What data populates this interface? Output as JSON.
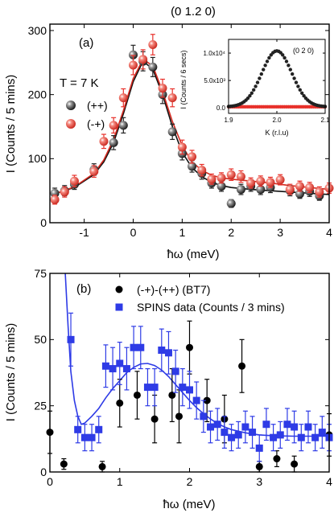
{
  "figure_title": "(0 1.2 0)",
  "chart_data": [
    {
      "panel_label": "(a)",
      "type": "scatter",
      "annotation": "T = 7 K",
      "xlabel": "ħω (meV)",
      "ylabel": "I (Counts / 5 mins)",
      "xlim": [
        -1.7,
        4.0
      ],
      "ylim": [
        0,
        310
      ],
      "x_ticks": [
        -1,
        0,
        1,
        2,
        3,
        4
      ],
      "y_ticks": [
        0,
        100,
        200,
        300
      ],
      "legend_position": "top-left",
      "series": [
        {
          "name": "(++)",
          "color": "#222222",
          "marker": "sphere",
          "points": [
            {
              "x": -1.6,
              "y": 46,
              "err": 8
            },
            {
              "x": -1.4,
              "y": 50,
              "err": 8
            },
            {
              "x": -1.2,
              "y": 60,
              "err": 8
            },
            {
              "x": -0.8,
              "y": 83,
              "err": 9
            },
            {
              "x": -0.4,
              "y": 125,
              "err": 11
            },
            {
              "x": -0.2,
              "y": 152,
              "err": 12
            },
            {
              "x": 0.0,
              "y": 262,
              "err": 15
            },
            {
              "x": 0.2,
              "y": 252,
              "err": 15
            },
            {
              "x": 0.4,
              "y": 243,
              "err": 15
            },
            {
              "x": 0.6,
              "y": 200,
              "err": 14
            },
            {
              "x": 0.8,
              "y": 142,
              "err": 12
            },
            {
              "x": 1.0,
              "y": 108,
              "err": 10
            },
            {
              "x": 1.2,
              "y": 88,
              "err": 9
            },
            {
              "x": 1.4,
              "y": 77,
              "err": 9
            },
            {
              "x": 1.6,
              "y": 62,
              "err": 8
            },
            {
              "x": 1.8,
              "y": 57,
              "err": 8
            },
            {
              "x": 2.0,
              "y": 30,
              "err": 6
            },
            {
              "x": 2.2,
              "y": 52,
              "err": 8
            },
            {
              "x": 2.4,
              "y": 57,
              "err": 8
            },
            {
              "x": 2.6,
              "y": 52,
              "err": 8
            },
            {
              "x": 2.8,
              "y": 55,
              "err": 8
            },
            {
              "x": 3.2,
              "y": 50,
              "err": 8
            },
            {
              "x": 3.4,
              "y": 45,
              "err": 7
            },
            {
              "x": 3.6,
              "y": 49,
              "err": 8
            },
            {
              "x": 3.8,
              "y": 42,
              "err": 7
            }
          ]
        },
        {
          "name": "(-+)",
          "color": "#e8302a",
          "marker": "sphere",
          "points": [
            {
              "x": -1.6,
              "y": 36,
              "err": 7
            },
            {
              "x": -1.4,
              "y": 48,
              "err": 8
            },
            {
              "x": -1.2,
              "y": 65,
              "err": 9
            },
            {
              "x": -0.8,
              "y": 80,
              "err": 9
            },
            {
              "x": -0.6,
              "y": 127,
              "err": 11
            },
            {
              "x": -0.4,
              "y": 152,
              "err": 12
            },
            {
              "x": -0.2,
              "y": 195,
              "err": 14
            },
            {
              "x": 0.0,
              "y": 246,
              "err": 15
            },
            {
              "x": 0.2,
              "y": 255,
              "err": 15
            },
            {
              "x": 0.4,
              "y": 278,
              "err": 16
            },
            {
              "x": 0.6,
              "y": 210,
              "err": 14
            },
            {
              "x": 0.8,
              "y": 195,
              "err": 14
            },
            {
              "x": 1.0,
              "y": 118,
              "err": 11
            },
            {
              "x": 1.2,
              "y": 103,
              "err": 10
            },
            {
              "x": 1.4,
              "y": 82,
              "err": 9
            },
            {
              "x": 1.6,
              "y": 68,
              "err": 8
            },
            {
              "x": 1.8,
              "y": 70,
              "err": 8
            },
            {
              "x": 2.0,
              "y": 75,
              "err": 9
            },
            {
              "x": 2.2,
              "y": 72,
              "err": 9
            },
            {
              "x": 2.4,
              "y": 62,
              "err": 8
            },
            {
              "x": 2.6,
              "y": 65,
              "err": 8
            },
            {
              "x": 2.8,
              "y": 63,
              "err": 8
            },
            {
              "x": 3.0,
              "y": 67,
              "err": 8
            },
            {
              "x": 3.2,
              "y": 52,
              "err": 8
            },
            {
              "x": 3.4,
              "y": 57,
              "err": 8
            },
            {
              "x": 3.6,
              "y": 55,
              "err": 8
            },
            {
              "x": 3.8,
              "y": 48,
              "err": 8
            },
            {
              "x": 4.0,
              "y": 54,
              "err": 8
            }
          ]
        }
      ],
      "fit_lines": [
        {
          "color": "#111111",
          "points": [
            [
              -1.6,
              45
            ],
            [
              -1.2,
              55
            ],
            [
              -0.8,
              75
            ],
            [
              -0.6,
              95
            ],
            [
              -0.4,
              125
            ],
            [
              -0.2,
              170
            ],
            [
              0.0,
              220
            ],
            [
              0.2,
              252
            ],
            [
              0.4,
              240
            ],
            [
              0.6,
              200
            ],
            [
              0.8,
              150
            ],
            [
              1.0,
              110
            ],
            [
              1.2,
              86
            ],
            [
              1.4,
              72
            ],
            [
              1.6,
              63
            ],
            [
              1.8,
              58
            ],
            [
              2.0,
              55
            ],
            [
              2.4,
              52
            ],
            [
              2.8,
              50
            ],
            [
              3.2,
              48
            ],
            [
              3.6,
              46
            ],
            [
              4.0,
              44
            ]
          ]
        },
        {
          "color": "#d42a20",
          "points": [
            [
              -1.6,
              45
            ],
            [
              -1.2,
              56
            ],
            [
              -0.8,
              77
            ],
            [
              -0.6,
              98
            ],
            [
              -0.4,
              130
            ],
            [
              -0.2,
              175
            ],
            [
              0.0,
              225
            ],
            [
              0.2,
              255
            ],
            [
              0.4,
              245
            ],
            [
              0.6,
              205
            ],
            [
              0.8,
              158
            ],
            [
              1.0,
              120
            ],
            [
              1.2,
              95
            ],
            [
              1.4,
              82
            ],
            [
              1.6,
              74
            ],
            [
              1.8,
              70
            ],
            [
              2.0,
              68
            ],
            [
              2.4,
              65
            ],
            [
              2.8,
              62
            ],
            [
              3.2,
              58
            ],
            [
              3.6,
              55
            ],
            [
              4.0,
              52
            ]
          ]
        }
      ],
      "inset": {
        "type": "scatter",
        "annotation": "(0 2 0)",
        "xlabel": "K (r.l.u)",
        "ylabel": "I (Counts / 6 secs)",
        "xlim": [
          1.9,
          2.1
        ],
        "ylim": [
          -1000,
          12500
        ],
        "x_ticks": [
          1.9,
          2.0,
          2.1
        ],
        "x_tick_labels": [
          "1.9",
          "2.0",
          "2.1"
        ],
        "y_ticks": [
          0,
          5000,
          10000
        ],
        "y_tick_labels": [
          "0.0",
          "5.0x10³",
          "1.0x10⁴"
        ],
        "peak_center": 2.0,
        "peak_height": 10200,
        "peak_sigma": 0.031,
        "red_baseline": 200
      }
    },
    {
      "panel_label": "(b)",
      "type": "scatter",
      "xlabel": "ħω (meV)",
      "ylabel": "I (Counts / 5 mins)",
      "xlim": [
        0,
        4.0
      ],
      "ylim": [
        0,
        75
      ],
      "x_ticks": [
        0,
        1,
        2,
        3,
        4
      ],
      "y_ticks": [
        0,
        25,
        50,
        75
      ],
      "legend_position": "top-left",
      "series": [
        {
          "name": "(-+)-(++) (BT7)",
          "color": "#000000",
          "marker": "circle",
          "points": [
            {
              "x": 0.0,
              "y": 15,
              "err": 8
            },
            {
              "x": 0.2,
              "y": 3,
              "err": 2
            },
            {
              "x": 0.75,
              "y": 2,
              "err": 2
            },
            {
              "x": 1.0,
              "y": 26,
              "err": 9
            },
            {
              "x": 1.25,
              "y": 29,
              "err": 9
            },
            {
              "x": 1.5,
              "y": 20,
              "err": 9
            },
            {
              "x": 1.75,
              "y": 29,
              "err": 10
            },
            {
              "x": 1.85,
              "y": 21,
              "err": 10
            },
            {
              "x": 2.0,
              "y": 47,
              "err": 10
            },
            {
              "x": 2.25,
              "y": 27,
              "err": 8
            },
            {
              "x": 2.5,
              "y": 20,
              "err": 9
            },
            {
              "x": 2.75,
              "y": 40,
              "err": 10
            },
            {
              "x": 3.0,
              "y": 2,
              "err": 2
            },
            {
              "x": 3.25,
              "y": 5,
              "err": 3
            },
            {
              "x": 3.5,
              "y": 3,
              "err": 3
            },
            {
              "x": 4.0,
              "y": 14,
              "err": 8
            }
          ]
        },
        {
          "name": "SPINS data (Counts / 3 mins)",
          "color": "#2e3be6",
          "marker": "square",
          "points": [
            {
              "x": 0.3,
              "y": 50,
              "err": 10
            },
            {
              "x": 0.4,
              "y": 16,
              "err": 5
            },
            {
              "x": 0.5,
              "y": 13,
              "err": 5
            },
            {
              "x": 0.6,
              "y": 13,
              "err": 5
            },
            {
              "x": 0.7,
              "y": 16,
              "err": 5
            },
            {
              "x": 0.8,
              "y": 40,
              "err": 8
            },
            {
              "x": 0.9,
              "y": 39,
              "err": 8
            },
            {
              "x": 1.0,
              "y": 41,
              "err": 8
            },
            {
              "x": 1.1,
              "y": 39,
              "err": 8
            },
            {
              "x": 1.2,
              "y": 47,
              "err": 8
            },
            {
              "x": 1.3,
              "y": 47,
              "err": 8
            },
            {
              "x": 1.4,
              "y": 32,
              "err": 7
            },
            {
              "x": 1.5,
              "y": 32,
              "err": 7
            },
            {
              "x": 1.6,
              "y": 46,
              "err": 8
            },
            {
              "x": 1.7,
              "y": 45,
              "err": 8
            },
            {
              "x": 1.8,
              "y": 38,
              "err": 8
            },
            {
              "x": 1.9,
              "y": 32,
              "err": 7
            },
            {
              "x": 2.0,
              "y": 31,
              "err": 7
            },
            {
              "x": 2.1,
              "y": 27,
              "err": 7
            },
            {
              "x": 2.2,
              "y": 21,
              "err": 6
            },
            {
              "x": 2.3,
              "y": 17,
              "err": 6
            },
            {
              "x": 2.4,
              "y": 18,
              "err": 6
            },
            {
              "x": 2.5,
              "y": 15,
              "err": 6
            },
            {
              "x": 2.6,
              "y": 13,
              "err": 5
            },
            {
              "x": 2.7,
              "y": 14,
              "err": 5
            },
            {
              "x": 2.8,
              "y": 17,
              "err": 6
            },
            {
              "x": 2.9,
              "y": 15,
              "err": 6
            },
            {
              "x": 3.0,
              "y": 9,
              "err": 5
            },
            {
              "x": 3.1,
              "y": 18,
              "err": 6
            },
            {
              "x": 3.2,
              "y": 13,
              "err": 5
            },
            {
              "x": 3.3,
              "y": 14,
              "err": 5
            },
            {
              "x": 3.4,
              "y": 18,
              "err": 6
            },
            {
              "x": 3.5,
              "y": 17,
              "err": 6
            },
            {
              "x": 3.6,
              "y": 13,
              "err": 5
            },
            {
              "x": 3.7,
              "y": 17,
              "err": 6
            },
            {
              "x": 3.8,
              "y": 13,
              "err": 5
            },
            {
              "x": 3.9,
              "y": 15,
              "err": 6
            },
            {
              "x": 4.0,
              "y": 13,
              "err": 5
            }
          ]
        }
      ],
      "fit_lines": [
        {
          "color": "#2e3be6",
          "points": [
            [
              0.22,
              75
            ],
            [
              0.26,
              55
            ],
            [
              0.3,
              38
            ],
            [
              0.35,
              27
            ],
            [
              0.4,
              21
            ],
            [
              0.45,
              18
            ],
            [
              0.5,
              18.5
            ],
            [
              0.6,
              21
            ],
            [
              0.7,
              24
            ],
            [
              0.8,
              28
            ],
            [
              0.9,
              31.5
            ],
            [
              1.0,
              34.5
            ],
            [
              1.1,
              37.5
            ],
            [
              1.2,
              39.5
            ],
            [
              1.3,
              40.8
            ],
            [
              1.4,
              41
            ],
            [
              1.5,
              40.2
            ],
            [
              1.6,
              38.5
            ],
            [
              1.7,
              36
            ],
            [
              1.8,
              33
            ],
            [
              1.9,
              30
            ],
            [
              2.0,
              27
            ],
            [
              2.1,
              24.3
            ],
            [
              2.2,
              22
            ],
            [
              2.3,
              20
            ],
            [
              2.4,
              18.3
            ],
            [
              2.5,
              17
            ],
            [
              2.6,
              16
            ],
            [
              2.8,
              14.8
            ],
            [
              3.0,
              14
            ],
            [
              3.2,
              13.7
            ],
            [
              3.5,
              13.5
            ],
            [
              4.0,
              13.5
            ]
          ]
        }
      ]
    }
  ]
}
